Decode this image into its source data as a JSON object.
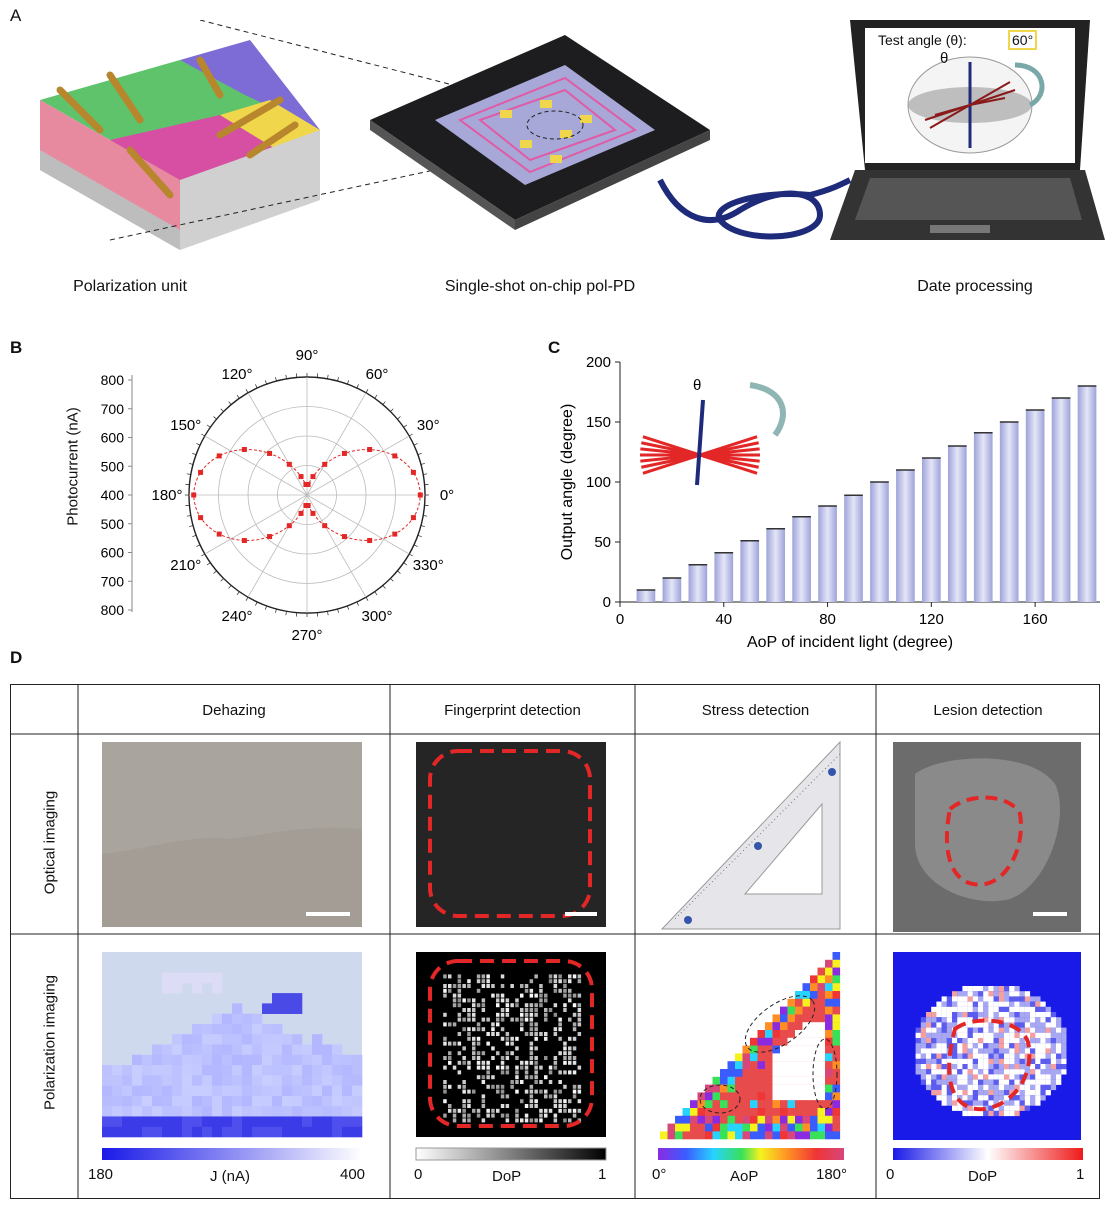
{
  "panel_labels": {
    "a": "A",
    "b": "B",
    "c": "C",
    "d": "D"
  },
  "panelA": {
    "captions": [
      "Polarization unit",
      "Single-shot on-chip pol-PD",
      "Date processing"
    ],
    "screen_label": "Test angle (θ):",
    "screen_value": "60°",
    "theta": "θ"
  },
  "panelB": {
    "ylabel": "Photocurrent (nA)",
    "radial_ticks": [
      "800",
      "700",
      "600",
      "500",
      "400",
      "500",
      "600",
      "700",
      "800"
    ],
    "angle_labels": {
      "0": "0°",
      "30": "30°",
      "60": "60°",
      "90": "90°",
      "120": "120°",
      "150": "150°",
      "180": "180°",
      "210": "210°",
      "240": "240°",
      "270": "270°",
      "300": "300°",
      "330": "330°"
    }
  },
  "chart_data": {
    "type": "bar",
    "title": "",
    "xlabel": "AoP of incident light (degree)",
    "ylabel": "Output angle (degree)",
    "x": [
      10,
      20,
      30,
      40,
      50,
      60,
      70,
      80,
      90,
      100,
      110,
      120,
      130,
      140,
      150,
      160,
      170,
      180
    ],
    "values": [
      10,
      20,
      31,
      41,
      51,
      61,
      71,
      80,
      89,
      100,
      110,
      120,
      130,
      141,
      150,
      160,
      170,
      180
    ],
    "xticks": [
      "0",
      "40",
      "80",
      "120",
      "160"
    ],
    "yticks": [
      "0",
      "50",
      "100",
      "150",
      "200"
    ],
    "xlim": [
      0,
      185
    ],
    "ylim": [
      0,
      200
    ],
    "inset_label": "θ",
    "colors": {
      "bar": "#b9bde6",
      "bar_edge": "#8d93cf"
    }
  },
  "panelD": {
    "columns": [
      "Dehazing",
      "Fingerprint detection",
      "Stress detection",
      "Lesion detection"
    ],
    "rows": [
      "Optical imaging",
      "Polarization imaging"
    ],
    "colorbars": [
      {
        "min": "180",
        "max": "400",
        "label": "J (nA)"
      },
      {
        "min": "0",
        "max": "1",
        "label": "DoP"
      },
      {
        "min": "0°",
        "max": "180°",
        "label": "AoP"
      },
      {
        "min": "0",
        "max": "1",
        "label": "DoP"
      }
    ]
  }
}
